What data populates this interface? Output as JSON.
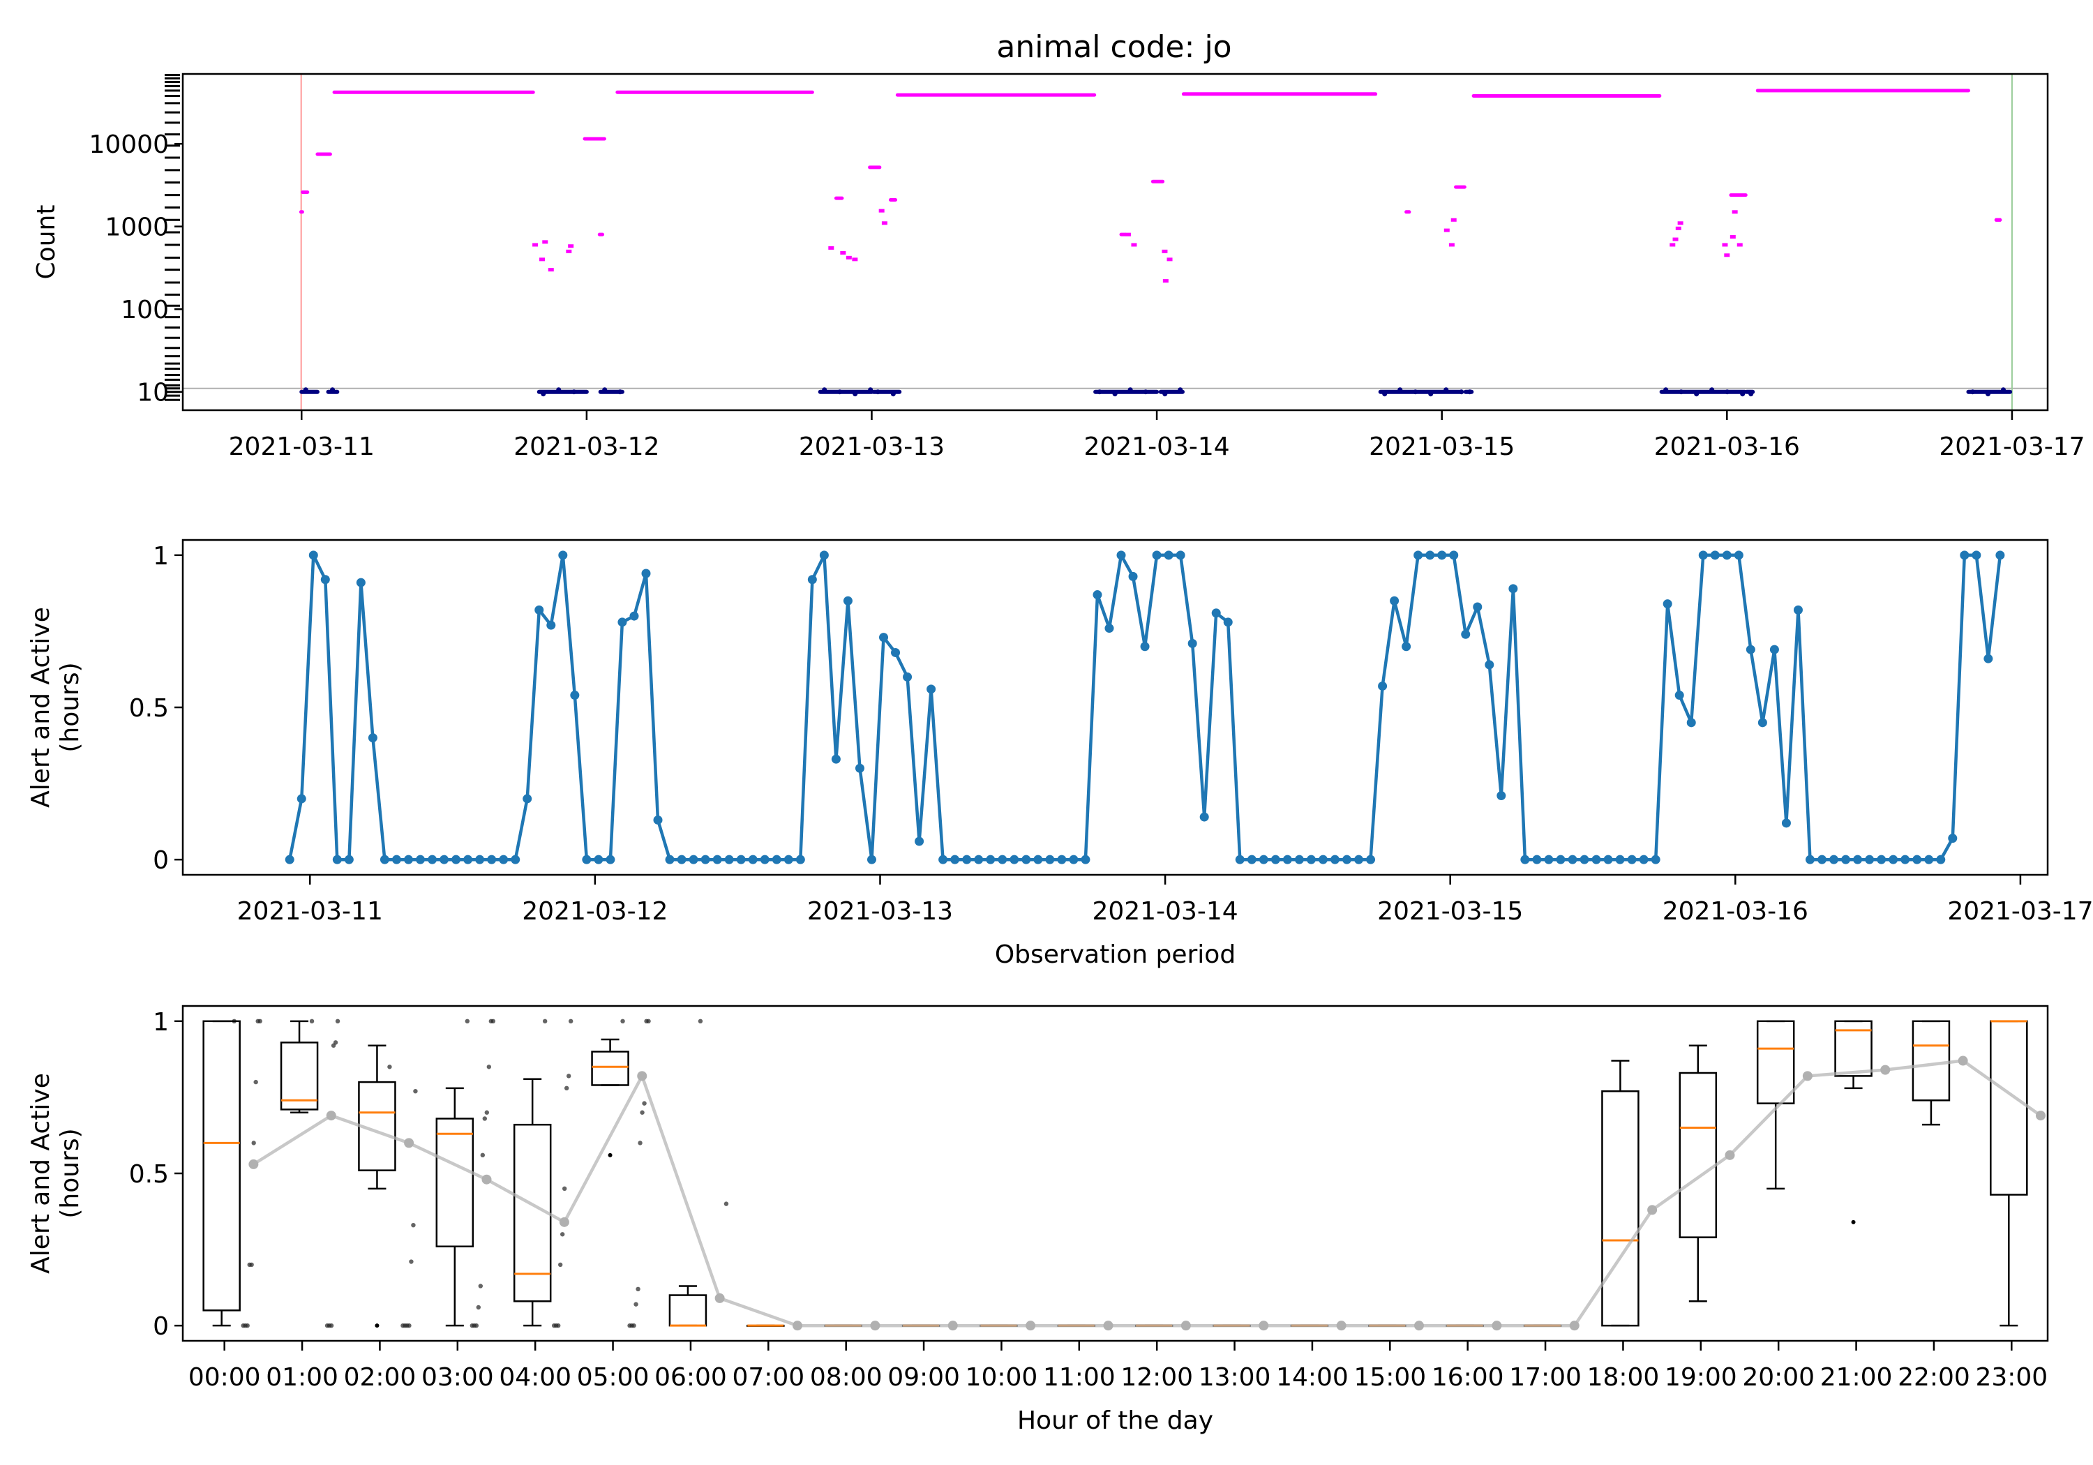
{
  "colors": {
    "count_line": "#ff00ff",
    "low_count": "#000080",
    "activity": "#1f77b4",
    "median": "#ff7f0e",
    "mean": "#b0b0b0",
    "start_marker": "#ff9999",
    "end_marker": "#99cc99",
    "threshold": "#b0b0b0"
  },
  "chart_data": [
    {
      "type": "scatter",
      "title": "animal code: jo",
      "xlabel": "",
      "ylabel": "Count",
      "yscale": "log",
      "ylim": [
        6,
        70000
      ],
      "yticks": [
        10,
        100,
        1000,
        10000
      ],
      "ytick_labels": [
        "10",
        "100",
        "1000",
        "10000"
      ],
      "xlim": [
        "2021-03-10 14:00",
        "2021-03-17 03:00"
      ],
      "xticks": [
        "2021-03-11",
        "2021-03-12",
        "2021-03-13",
        "2021-03-14",
        "2021-03-15",
        "2021-03-16",
        "2021-03-17"
      ],
      "threshold": 11,
      "start_marker": "2021-03-10 23:58",
      "end_marker": "2021-03-17 00:00",
      "rug_values": [
        8,
        9,
        10,
        11,
        12,
        14,
        16,
        19,
        22,
        27,
        34,
        45,
        60,
        80,
        110,
        150,
        210,
        300,
        420,
        600,
        850,
        1200,
        1700,
        2400,
        3400,
        4800,
        6800,
        9500,
        13000,
        18000,
        24000,
        31000,
        38000,
        44000,
        50000,
        56000,
        62000,
        68000
      ],
      "segments": [
        {
          "start": "2021-03-10 23:57",
          "end": "2021-03-11 00:04",
          "value": 1500
        },
        {
          "start": "2021-03-11 00:05",
          "end": "2021-03-11 00:30",
          "value": 2600
        },
        {
          "start": "2021-03-11 01:20",
          "end": "2021-03-11 02:25",
          "value": 7500
        },
        {
          "start": "2021-03-11 02:45",
          "end": "2021-03-11 19:30",
          "value": 42000
        },
        {
          "start": "2021-03-11 23:50",
          "end": "2021-03-12 01:30",
          "value": 11500
        },
        {
          "start": "2021-03-12 01:05",
          "end": "2021-03-12 01:20",
          "value": 800
        },
        {
          "start": "2021-03-12 02:35",
          "end": "2021-03-12 19:00",
          "value": 42000
        },
        {
          "start": "2021-03-12 21:00",
          "end": "2021-03-12 21:30",
          "value": 2200
        },
        {
          "start": "2021-03-12 23:50",
          "end": "2021-03-13 00:40",
          "value": 5200
        },
        {
          "start": "2021-03-13 01:35",
          "end": "2021-03-13 02:00",
          "value": 2100
        },
        {
          "start": "2021-03-13 02:10",
          "end": "2021-03-13 18:45",
          "value": 39000
        },
        {
          "start": "2021-03-13 21:00",
          "end": "2021-03-13 21:20",
          "value": 800
        },
        {
          "start": "2021-03-13 23:40",
          "end": "2021-03-14 00:30",
          "value": 3500
        },
        {
          "start": "2021-03-14 02:15",
          "end": "2021-03-14 18:25",
          "value": 40000
        },
        {
          "start": "2021-03-14 21:00",
          "end": "2021-03-14 21:15",
          "value": 1500
        },
        {
          "start": "2021-03-15 01:10",
          "end": "2021-03-15 01:55",
          "value": 3000
        },
        {
          "start": "2021-03-15 02:40",
          "end": "2021-03-15 18:20",
          "value": 38000
        },
        {
          "start": "2021-03-16 00:20",
          "end": "2021-03-16 01:35",
          "value": 2400
        },
        {
          "start": "2021-03-16 02:35",
          "end": "2021-03-16 20:20",
          "value": 44000
        },
        {
          "start": "2021-03-16 22:40",
          "end": "2021-03-16 23:00",
          "value": 1200
        }
      ],
      "points": [
        [
          "2021-03-11 19:40",
          600
        ],
        [
          "2021-03-11 20:15",
          400
        ],
        [
          "2021-03-11 21:00",
          300
        ],
        [
          "2021-03-11 20:30",
          650
        ],
        [
          "2021-03-11 22:30",
          500
        ],
        [
          "2021-03-11 22:40",
          580
        ],
        [
          "2021-03-12 20:35",
          550
        ],
        [
          "2021-03-12 21:35",
          480
        ],
        [
          "2021-03-12 22:35",
          400
        ],
        [
          "2021-03-12 22:05",
          420
        ],
        [
          "2021-03-13 00:50",
          1550
        ],
        [
          "2021-03-13 01:05",
          1100
        ],
        [
          "2021-03-13 21:35",
          800
        ],
        [
          "2021-03-13 22:05",
          600
        ],
        [
          "2021-03-14 00:40",
          500
        ],
        [
          "2021-03-14 00:45",
          220
        ],
        [
          "2021-03-14 01:05",
          400
        ],
        [
          "2021-03-15 00:25",
          900
        ],
        [
          "2021-03-15 00:50",
          600
        ],
        [
          "2021-03-15 01:00",
          1200
        ],
        [
          "2021-03-15 19:25",
          600
        ],
        [
          "2021-03-15 19:40",
          700
        ],
        [
          "2021-03-15 19:55",
          950
        ],
        [
          "2021-03-15 20:05",
          1100
        ],
        [
          "2021-03-16 22:50",
          1200
        ],
        [
          "2021-03-15 23:50",
          600
        ],
        [
          "2021-03-16 00:00",
          450
        ],
        [
          "2021-03-16 00:30",
          750
        ],
        [
          "2021-03-16 00:40",
          1500
        ],
        [
          "2021-03-16 01:05",
          600
        ]
      ],
      "low_clusters": [
        {
          "start": "2021-03-11 00:00",
          "end": "2021-03-11 01:20",
          "value": 10
        },
        {
          "start": "2021-03-11 02:15",
          "end": "2021-03-11 03:00",
          "value": 10
        },
        {
          "start": "2021-03-11 20:00",
          "end": "2021-03-12 00:00",
          "value": 10
        },
        {
          "start": "2021-03-12 01:10",
          "end": "2021-03-12 03:00",
          "value": 10
        },
        {
          "start": "2021-03-12 19:40",
          "end": "2021-03-13 00:00",
          "value": 10
        },
        {
          "start": "2021-03-13 00:10",
          "end": "2021-03-13 02:20",
          "value": 10
        },
        {
          "start": "2021-03-13 18:50",
          "end": "2021-03-14 00:00",
          "value": 10
        },
        {
          "start": "2021-03-14 00:20",
          "end": "2021-03-14 02:10",
          "value": 10
        },
        {
          "start": "2021-03-14 18:50",
          "end": "2021-03-15 01:40",
          "value": 10
        },
        {
          "start": "2021-03-15 02:00",
          "end": "2021-03-15 02:30",
          "value": 10
        },
        {
          "start": "2021-03-15 18:30",
          "end": "2021-03-16 01:30",
          "value": 10
        },
        {
          "start": "2021-03-16 01:40",
          "end": "2021-03-16 02:10",
          "value": 10
        },
        {
          "start": "2021-03-16 20:20",
          "end": "2021-03-16 23:50",
          "value": 10
        }
      ]
    },
    {
      "type": "line",
      "title": "",
      "xlabel": "Observation period",
      "ylabel": "Alert and Active (hours)",
      "ylabel_lines": [
        "Alert and Active",
        "(hours)"
      ],
      "ylim": [
        -0.05,
        1.05
      ],
      "yticks": [
        0,
        0.5,
        1
      ],
      "ytick_labels": [
        "0",
        "0.5",
        "1"
      ],
      "xlim": [
        "2021-03-10 14:00",
        "2021-03-17 03:00"
      ],
      "xticks": [
        "2021-03-11",
        "2021-03-12",
        "2021-03-13",
        "2021-03-14",
        "2021-03-15",
        "2021-03-16",
        "2021-03-17"
      ],
      "x_start": "2021-03-10 23:00",
      "x_step_hours": 1,
      "values": [
        0,
        0.2,
        1,
        0.92,
        0,
        0,
        0.91,
        0.4,
        0,
        0,
        0,
        0,
        0,
        0,
        0,
        0,
        0,
        0,
        0,
        0,
        0.2,
        0.82,
        0.77,
        1,
        0.54,
        0,
        0,
        0,
        0.78,
        0.8,
        0.94,
        0.13,
        0,
        0,
        0,
        0,
        0,
        0,
        0,
        0,
        0,
        0,
        0,
        0,
        0.92,
        1,
        0.33,
        0.85,
        0.3,
        0,
        0.73,
        0.68,
        0.6,
        0.06,
        0.56,
        0,
        0,
        0,
        0,
        0,
        0,
        0,
        0,
        0,
        0,
        0,
        0,
        0,
        0.87,
        0.76,
        1,
        0.93,
        0.7,
        1,
        1,
        1,
        0.71,
        0.14,
        0.81,
        0.78,
        0,
        0,
        0,
        0,
        0,
        0,
        0,
        0,
        0,
        0,
        0,
        0,
        0.57,
        0.85,
        0.7,
        1,
        1,
        1,
        1,
        0.74,
        0.83,
        0.64,
        0.21,
        0.89,
        0,
        0,
        0,
        0,
        0,
        0,
        0,
        0,
        0,
        0,
        0,
        0,
        0.84,
        0.54,
        0.45,
        1,
        1,
        1,
        1,
        0.69,
        0.45,
        0.69,
        0.12,
        0.82,
        0,
        0,
        0,
        0,
        0,
        0,
        0,
        0,
        0,
        0,
        0,
        0,
        0.07,
        1,
        1,
        0.66,
        1
      ]
    },
    {
      "type": "box",
      "title": "",
      "xlabel": "Hour of the day",
      "ylabel": "Alert and Active (hours)",
      "ylabel_lines": [
        "Alert and Active",
        "(hours)"
      ],
      "ylim": [
        -0.05,
        1.05
      ],
      "yticks": [
        0,
        0.5,
        1
      ],
      "ytick_labels": [
        "0",
        "0.5",
        "1"
      ],
      "categories": [
        "00:00",
        "01:00",
        "02:00",
        "03:00",
        "04:00",
        "05:00",
        "06:00",
        "07:00",
        "08:00",
        "09:00",
        "10:00",
        "11:00",
        "12:00",
        "13:00",
        "14:00",
        "15:00",
        "16:00",
        "17:00",
        "18:00",
        "19:00",
        "20:00",
        "21:00",
        "22:00",
        "23:00"
      ],
      "boxes": [
        {
          "q1": 0.05,
          "median": 0.6,
          "q3": 1,
          "whisker_low": 0,
          "whisker_high": 1,
          "fliers": []
        },
        {
          "q1": 0.71,
          "median": 0.74,
          "q3": 0.93,
          "whisker_low": 0.7,
          "whisker_high": 1,
          "fliers": []
        },
        {
          "q1": 0.51,
          "median": 0.7,
          "q3": 0.8,
          "whisker_low": 0.45,
          "whisker_high": 0.92,
          "fliers": [
            0
          ]
        },
        {
          "q1": 0.26,
          "median": 0.63,
          "q3": 0.68,
          "whisker_low": 0,
          "whisker_high": 0.78,
          "fliers": []
        },
        {
          "q1": 0.08,
          "median": 0.17,
          "q3": 0.66,
          "whisker_low": 0,
          "whisker_high": 0.81,
          "fliers": []
        },
        {
          "q1": 0.79,
          "median": 0.85,
          "q3": 0.9,
          "whisker_low": 0.79,
          "whisker_high": 0.94,
          "fliers": [
            0.56
          ]
        },
        {
          "q1": 0,
          "median": 0,
          "q3": 0.1,
          "whisker_low": 0,
          "whisker_high": 0.13,
          "fliers": []
        },
        {
          "q1": 0,
          "median": 0,
          "q3": 0,
          "whisker_low": 0,
          "whisker_high": 0,
          "fliers": []
        },
        {
          "q1": 0,
          "median": 0,
          "q3": 0,
          "whisker_low": 0,
          "whisker_high": 0,
          "fliers": []
        },
        {
          "q1": 0,
          "median": 0,
          "q3": 0,
          "whisker_low": 0,
          "whisker_high": 0,
          "fliers": []
        },
        {
          "q1": 0,
          "median": 0,
          "q3": 0,
          "whisker_low": 0,
          "whisker_high": 0,
          "fliers": []
        },
        {
          "q1": 0,
          "median": 0,
          "q3": 0,
          "whisker_low": 0,
          "whisker_high": 0,
          "fliers": []
        },
        {
          "q1": 0,
          "median": 0,
          "q3": 0,
          "whisker_low": 0,
          "whisker_high": 0,
          "fliers": []
        },
        {
          "q1": 0,
          "median": 0,
          "q3": 0,
          "whisker_low": 0,
          "whisker_high": 0,
          "fliers": []
        },
        {
          "q1": 0,
          "median": 0,
          "q3": 0,
          "whisker_low": 0,
          "whisker_high": 0,
          "fliers": []
        },
        {
          "q1": 0,
          "median": 0,
          "q3": 0,
          "whisker_low": 0,
          "whisker_high": 0,
          "fliers": []
        },
        {
          "q1": 0,
          "median": 0,
          "q3": 0,
          "whisker_low": 0,
          "whisker_high": 0,
          "fliers": []
        },
        {
          "q1": 0,
          "median": 0,
          "q3": 0,
          "whisker_low": 0,
          "whisker_high": 0,
          "fliers": []
        },
        {
          "q1": 0,
          "median": 0.28,
          "q3": 0.77,
          "whisker_low": 0,
          "whisker_high": 0.87,
          "fliers": []
        },
        {
          "q1": 0.29,
          "median": 0.65,
          "q3": 0.83,
          "whisker_low": 0.08,
          "whisker_high": 0.92,
          "fliers": []
        },
        {
          "q1": 0.73,
          "median": 0.91,
          "q3": 1,
          "whisker_low": 0.45,
          "whisker_high": 1,
          "fliers": []
        },
        {
          "q1": 0.82,
          "median": 0.97,
          "q3": 1,
          "whisker_low": 0.78,
          "whisker_high": 1,
          "fliers": [
            0.34
          ]
        },
        {
          "q1": 0.74,
          "median": 0.92,
          "q3": 1,
          "whisker_low": 0.66,
          "whisker_high": 1,
          "fliers": []
        },
        {
          "q1": 0.43,
          "median": 1,
          "q3": 1,
          "whisker_low": 0,
          "whisker_high": 1,
          "fliers": []
        }
      ],
      "means": [
        0.53,
        0.69,
        0.6,
        0.48,
        0.34,
        0.82,
        0.09,
        0,
        0,
        0,
        0,
        0,
        0,
        0,
        0,
        0,
        0,
        0,
        0.38,
        0.56,
        0.82,
        0.84,
        0.87,
        0.69
      ],
      "jitter_points": [
        {
          "hour": 0,
          "values": [
            1,
            1,
            1,
            0.8,
            0.6,
            0.2,
            0.2,
            0,
            0,
            0
          ]
        },
        {
          "hour": 1,
          "values": [
            1,
            1,
            0.93,
            0.92,
            0,
            0,
            0
          ]
        },
        {
          "hour": 2,
          "values": [
            0.85,
            0.77,
            0.33,
            0.21,
            0,
            0,
            0,
            0
          ]
        },
        {
          "hour": 3,
          "values": [
            1,
            1,
            1,
            0.85,
            0.7,
            0.68,
            0.56,
            0.13,
            0.06,
            0,
            0,
            0
          ]
        },
        {
          "hour": 4,
          "values": [
            1,
            1,
            0.82,
            0.78,
            0.45,
            0.3,
            0.2,
            0,
            0,
            0
          ]
        },
        {
          "hour": 5,
          "values": [
            1,
            1,
            1,
            0.73,
            0.7,
            0.6,
            0.12,
            0.07,
            0,
            0,
            0
          ]
        },
        {
          "hour": 6,
          "values": [
            1,
            0.4
          ]
        }
      ]
    }
  ]
}
